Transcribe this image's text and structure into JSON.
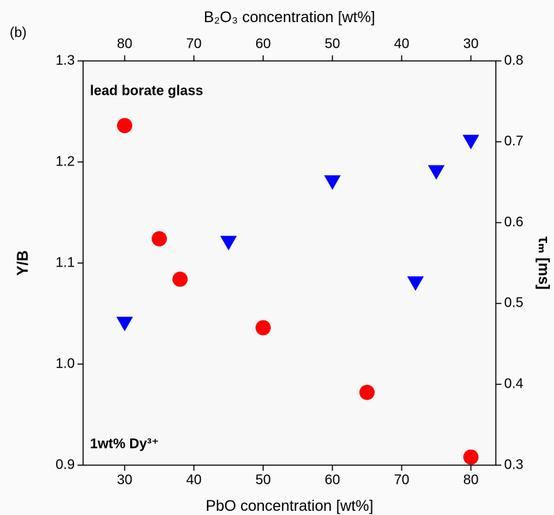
{
  "chart_data": {
    "type": "scatter",
    "panel_label": "(b)",
    "xlabel": "PbO concentration [wt%]",
    "x2label": "B₂O₃ concentration [wt%]",
    "ylabel": "Y/B",
    "y2label": "τₘ [ms]",
    "annotations": [
      "lead borate glass",
      "1wt% Dy³⁺"
    ],
    "xlim": [
      24,
      83.6
    ],
    "xticks": [
      30,
      40,
      50,
      60,
      70,
      80
    ],
    "x2lim": [
      86,
      26.4
    ],
    "x2ticks": [
      80,
      70,
      60,
      50,
      40,
      30
    ],
    "ylim": [
      0.9,
      1.3
    ],
    "yticks": [
      0.9,
      {
        "value": 1,
        "label": "1.0"
      },
      1.1,
      1.2,
      1.3
    ],
    "y2lim": [
      0.3,
      0.8
    ],
    "y2ticks": [
      0.3,
      0.4,
      0.5,
      0.6,
      0.7,
      0.8
    ],
    "ylabel_color": "#0000ff",
    "y2label_color": "#ff0000",
    "series": [
      {
        "marker": "triangle-down",
        "color": "#0000ff",
        "axis": "y",
        "x": [
          30,
          45,
          60,
          72,
          75,
          80
        ],
        "values": [
          1.04,
          1.12,
          1.18,
          1.08,
          1.19,
          1.22
        ]
      },
      {
        "marker": "circle",
        "color": "#ff0000",
        "axis": "y2",
        "x": [
          30,
          35,
          38,
          50,
          65,
          80
        ],
        "values": [
          0.72,
          0.58,
          0.53,
          0.47,
          0.39,
          0.31
        ]
      }
    ]
  }
}
